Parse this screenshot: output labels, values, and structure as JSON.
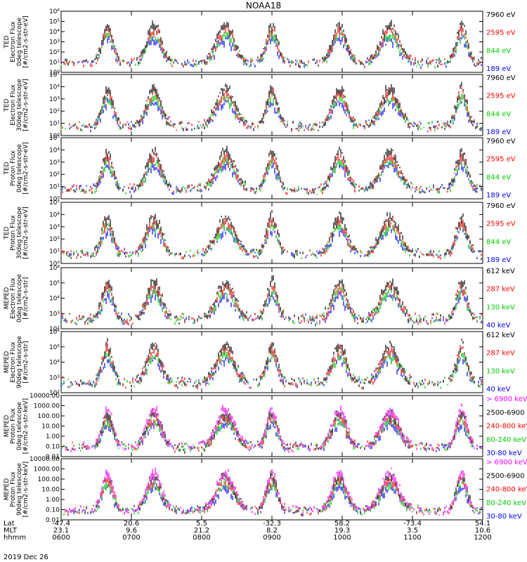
{
  "title": "NOAA18",
  "date": "2019 Dec 26",
  "footer": {
    "labels": [
      "Lat",
      "MLT",
      "hhmm"
    ],
    "columns": [
      {
        "lat": "-47.4",
        "mlt": "23.1",
        "hhmm": "0600"
      },
      {
        "lat": "20.6",
        "mlt": "9.6",
        "hhmm": "0700"
      },
      {
        "lat": "5.5",
        "mlt": "21.2",
        "hhmm": "0800"
      },
      {
        "lat": "-32.3",
        "mlt": "8.2",
        "hhmm": "0900"
      },
      {
        "lat": "58.2",
        "mlt": "19.3",
        "hhmm": "1000"
      },
      {
        "lat": "-73.4",
        "mlt": "3.5",
        "hhmm": "1100"
      },
      {
        "lat": "54.1",
        "mlt": "10.6",
        "hhmm": "1200"
      }
    ]
  },
  "chart_data": [
    {
      "type": "scatter",
      "log_y": true,
      "ylim_exp": [
        0,
        6
      ],
      "ylabel": [
        "TED",
        "Electron Flux",
        "0deg telescope",
        "[#/cm2-s-str-eV]"
      ],
      "tick_labels": [
        "10⁰",
        "10¹",
        "10²",
        "10³",
        "10⁴",
        "10⁵",
        "10⁶"
      ],
      "xlim": [
        "0600",
        "1200"
      ],
      "series": [
        {
          "name": "7960 eV",
          "color": "#000000"
        },
        {
          "name": "2595 eV",
          "color": "#ff0000"
        },
        {
          "name": "844 eV",
          "color": "#00cc00"
        },
        {
          "name": "189 eV",
          "color": "#0000ff"
        }
      ]
    },
    {
      "type": "scatter",
      "log_y": true,
      "ylim_exp": [
        0,
        5
      ],
      "ylabel": [
        "TED",
        "Electron Flux",
        "30deg telescope",
        "[#/cm2-s-str-eV]"
      ],
      "tick_labels": [
        "10⁰",
        "10¹",
        "10²",
        "10³",
        "10⁴",
        "10⁵"
      ],
      "xlim": [
        "0600",
        "1200"
      ],
      "series": [
        {
          "name": "7960 eV",
          "color": "#000000"
        },
        {
          "name": "2595 eV",
          "color": "#ff0000"
        },
        {
          "name": "844 eV",
          "color": "#00cc00"
        },
        {
          "name": "189 eV",
          "color": "#0000ff"
        }
      ]
    },
    {
      "type": "scatter",
      "log_y": true,
      "ylim_exp": [
        0,
        5
      ],
      "ylabel": [
        "TED",
        "Proton Flux",
        "0deg telescope",
        "[#/cm2-s-str-eV]"
      ],
      "tick_labels": [
        "10⁰",
        "10¹",
        "10²",
        "10³",
        "10⁴",
        "10⁵"
      ],
      "xlim": [
        "0600",
        "1200"
      ],
      "series": [
        {
          "name": "7960 eV",
          "color": "#000000"
        },
        {
          "name": "2595 eV",
          "color": "#ff0000"
        },
        {
          "name": "844 eV",
          "color": "#00cc00"
        },
        {
          "name": "189 eV",
          "color": "#0000ff"
        }
      ]
    },
    {
      "type": "scatter",
      "log_y": true,
      "ylim_exp": [
        0,
        5
      ],
      "ylabel": [
        "TED",
        "Proton Flux",
        "30deg telescope",
        "[#/cm2-s-str-eV]"
      ],
      "tick_labels": [
        "10⁰",
        "10¹",
        "10²",
        "10³",
        "10⁴",
        "10⁵"
      ],
      "xlim": [
        "0600",
        "1200"
      ],
      "series": [
        {
          "name": "7960 eV",
          "color": "#000000"
        },
        {
          "name": "2595 eV",
          "color": "#ff0000"
        },
        {
          "name": "844 eV",
          "color": "#00cc00"
        },
        {
          "name": "189 eV",
          "color": "#0000ff"
        }
      ]
    },
    {
      "type": "scatter",
      "log_y": true,
      "ylim_exp": [
        2,
        6
      ],
      "ylabel": [
        "MEPED",
        "Electron Flux",
        "0deg telescope",
        "[#/cm2-s-str]"
      ],
      "tick_labels": [
        "10²",
        "10³",
        "10⁴",
        "10⁵",
        "10⁶"
      ],
      "xlim": [
        "0600",
        "1200"
      ],
      "series": [
        {
          "name": "612 keV",
          "color": "#000000"
        },
        {
          "name": "287 keV",
          "color": "#ff0000"
        },
        {
          "name": "130 keV",
          "color": "#00cc00"
        },
        {
          "name": "40 keV",
          "color": "#0000ff"
        }
      ]
    },
    {
      "type": "scatter",
      "log_y": true,
      "ylim_exp": [
        2,
        6
      ],
      "ylabel": [
        "MEPED",
        "Electron Flux",
        "90deg telescope",
        "[#/cm2-s-str]"
      ],
      "tick_labels": [
        "10²",
        "10³",
        "10⁴",
        "10⁵",
        "10⁶"
      ],
      "xlim": [
        "0600",
        "1200"
      ],
      "series": [
        {
          "name": "612 keV",
          "color": "#000000"
        },
        {
          "name": "287 keV",
          "color": "#ff0000"
        },
        {
          "name": "130 keV",
          "color": "#00cc00"
        },
        {
          "name": "40 keV",
          "color": "#0000ff"
        }
      ]
    },
    {
      "type": "scatter",
      "log_y": true,
      "ylim_exp": [
        -2,
        4
      ],
      "ylabel": [
        "MEPED",
        "Proton Flux",
        "0deg telescope",
        "[#/cm2-s-str-keV]"
      ],
      "tick_labels": [
        "0.01",
        "0.10",
        "1.00",
        "10.00",
        "100.00",
        "1000.00",
        "10000.00"
      ],
      "xlim": [
        "0600",
        "1200"
      ],
      "series": [
        {
          "name": "> 6900 keV",
          "color": "#ff00ff"
        },
        {
          "name": "2500-6900",
          "color": "#000000"
        },
        {
          "name": "240-800 keV",
          "color": "#ff0000"
        },
        {
          "name": "80-240 keV",
          "color": "#00cc00"
        },
        {
          "name": "30-80 keV",
          "color": "#0000ff"
        }
      ]
    },
    {
      "type": "scatter",
      "log_y": true,
      "ylim_exp": [
        -2,
        4
      ],
      "ylabel": [
        "MEPED",
        "Proton Flux",
        "90deg telescope",
        "[#/cm2-s-str-keV]"
      ],
      "tick_labels": [
        "0.01",
        "0.10",
        "1.00",
        "10.00",
        "100.00",
        "1000.00",
        "10000.00"
      ],
      "xlim": [
        "0600",
        "1200"
      ],
      "series": [
        {
          "name": "> 6900 keV",
          "color": "#ff00ff"
        },
        {
          "name": "2500-6900",
          "color": "#000000"
        },
        {
          "name": "240-800 keV",
          "color": "#ff0000"
        },
        {
          "name": "80-240 keV",
          "color": "#00cc00"
        },
        {
          "name": "30-80 keV",
          "color": "#0000ff"
        }
      ]
    }
  ]
}
